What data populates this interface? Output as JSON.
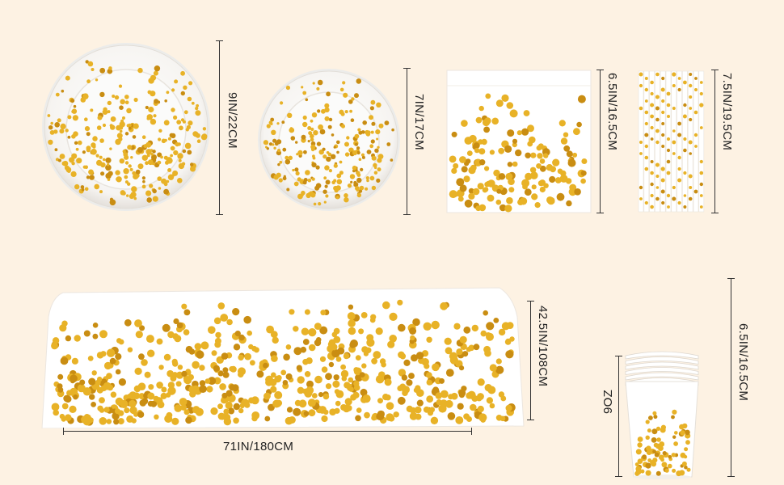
{
  "colors": {
    "background": "#fdf2e3",
    "gold": "#e8b227",
    "gold_dark": "#c98d12",
    "white": "#ffffff"
  },
  "products": {
    "large_plate": {
      "icon": "large-plate",
      "dimension": "9IN/22CM"
    },
    "small_plate": {
      "icon": "small-plate",
      "dimension": "7IN/17CM"
    },
    "napkin": {
      "icon": "napkin",
      "dimension": "6.5IN/16.5CM"
    },
    "straws": {
      "icon": "straws",
      "dimension": "7.5IN/19.5CM"
    },
    "tablecloth": {
      "icon": "tablecloth",
      "width": "71IN/180CM",
      "height": "42.5IN/108CM"
    },
    "cups": {
      "icon": "cups",
      "capacity": "9OZ",
      "dimension": "6.5IN/16.5CM"
    }
  }
}
